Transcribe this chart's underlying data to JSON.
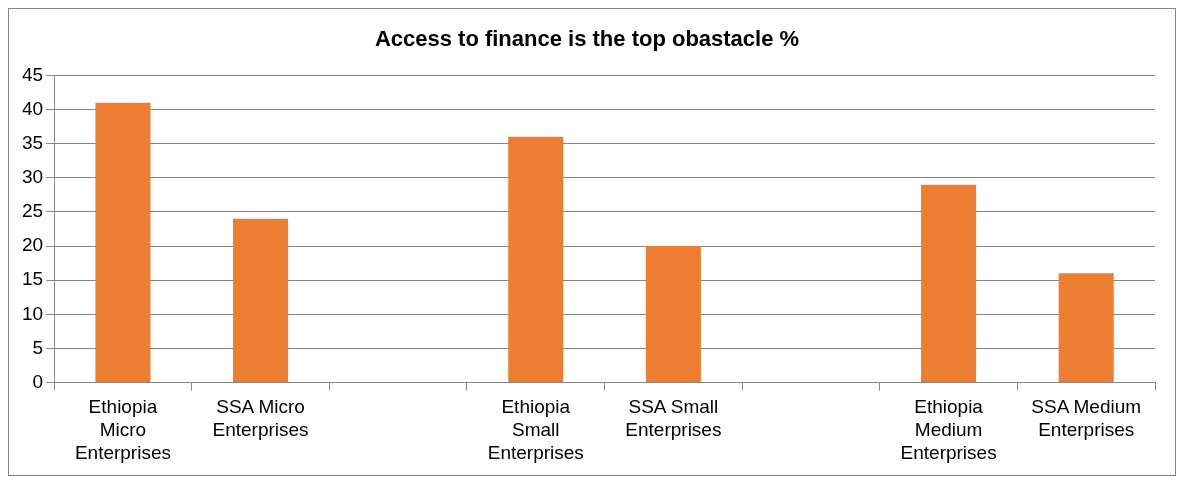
{
  "chart_data": {
    "type": "bar",
    "title": "Access to finance is the top obastacle %",
    "categories": [
      "Ethiopia Micro Enterprises",
      "SSA Micro Enterprises",
      null,
      "Ethiopia Small Enterprises",
      "SSA Small Enterprises",
      null,
      "Ethiopia Medium Enterprises",
      "SSA Medium Enterprises"
    ],
    "values": [
      41,
      24,
      null,
      36,
      20,
      null,
      29,
      16
    ],
    "color": "#ed7d31",
    "ylim": [
      0,
      45
    ],
    "yticks": [
      0,
      5,
      10,
      15,
      20,
      25,
      30,
      35,
      40,
      45
    ],
    "grid": "y",
    "legend": false
  }
}
